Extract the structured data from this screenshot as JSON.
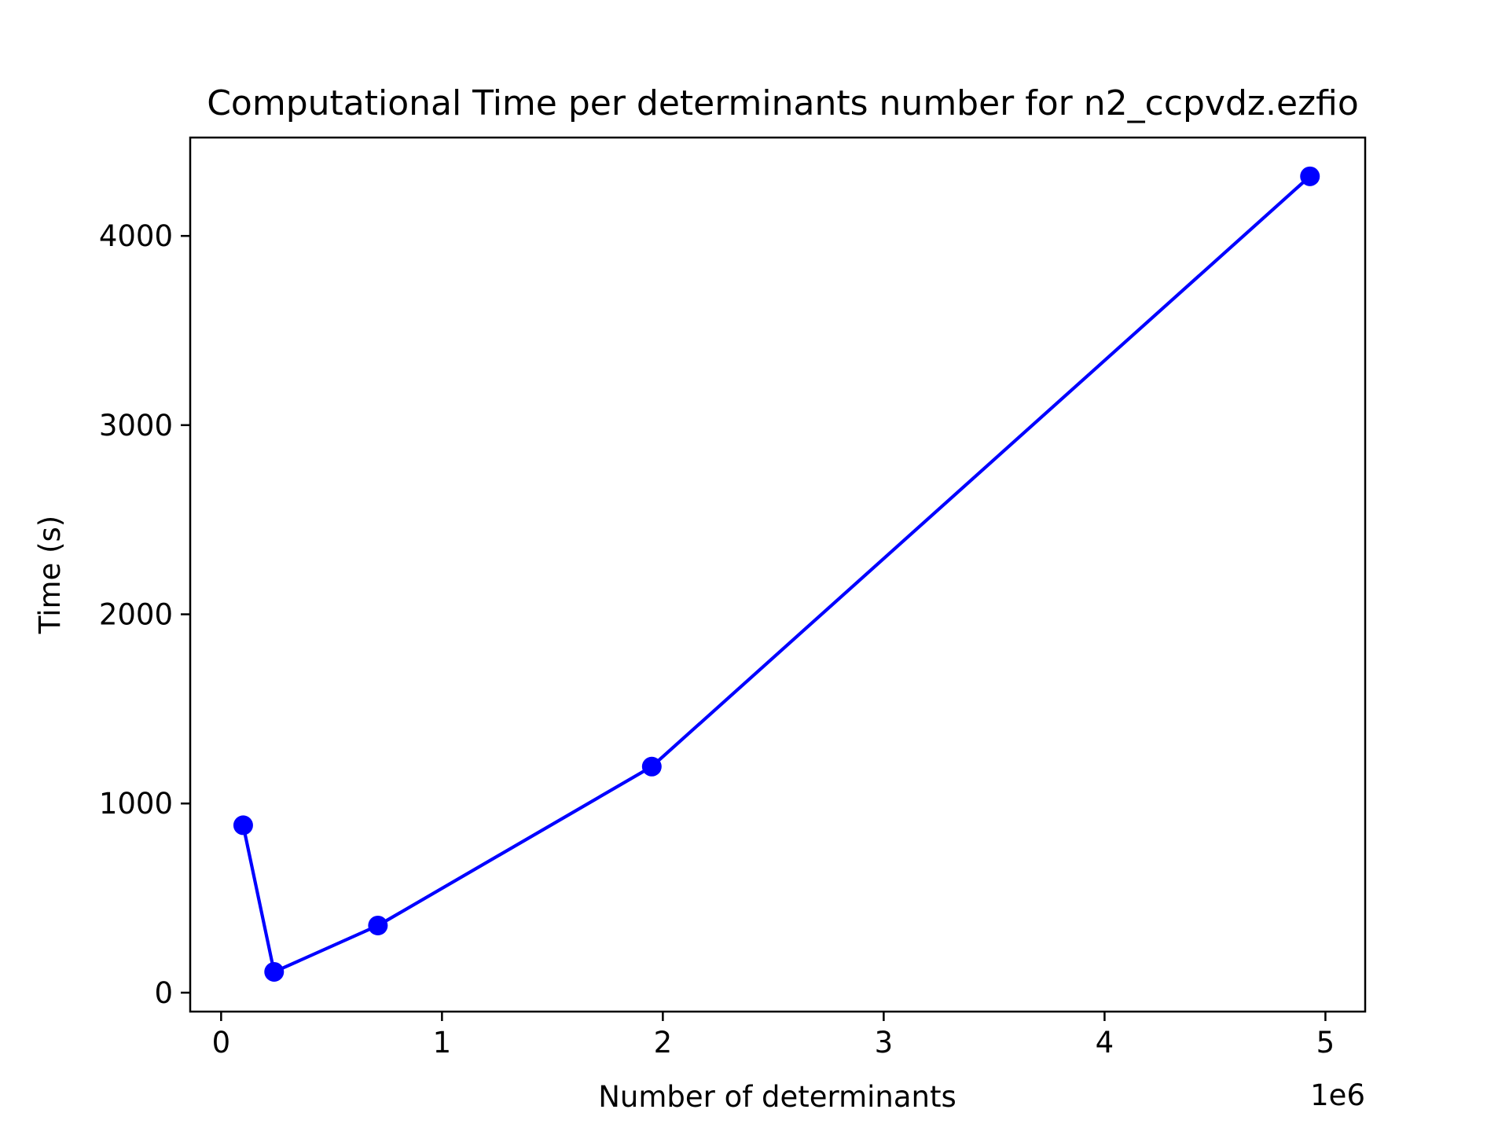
{
  "chart_data": {
    "type": "line",
    "title": "Computational Time per determinants number for n2_ccpvdz.ezfio",
    "xlabel": "Number of determinants",
    "ylabel": "Time (s)",
    "x_offset_text": "1e6",
    "xlim": [
      -140000,
      5180000
    ],
    "ylim": [
      -100,
      4520
    ],
    "x_ticks": [
      0,
      1000000,
      2000000,
      3000000,
      4000000,
      5000000
    ],
    "x_tick_labels": [
      "0",
      "1",
      "2",
      "3",
      "4",
      "5"
    ],
    "y_ticks": [
      0,
      1000,
      2000,
      3000,
      4000
    ],
    "y_tick_labels": [
      "0",
      "1000",
      "2000",
      "3000",
      "4000"
    ],
    "grid": false,
    "legend": "none",
    "series": [
      {
        "color": "#0000ff",
        "marker": "circle",
        "x": [
          100000,
          240000,
          710000,
          1950000,
          4930000
        ],
        "y": [
          885,
          110,
          355,
          1195,
          4315
        ]
      }
    ]
  }
}
